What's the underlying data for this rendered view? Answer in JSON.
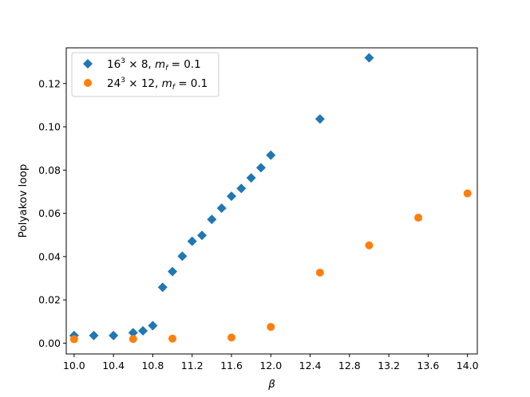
{
  "chart_data": {
    "type": "scatter",
    "xlabel": "β",
    "ylabel": "Polyakov loop",
    "xlim": [
      9.92,
      14.1
    ],
    "ylim": [
      -0.005,
      0.1365
    ],
    "xticks": [
      "10.0",
      "10.4",
      "10.8",
      "11.2",
      "11.6",
      "12.0",
      "12.4",
      "12.8",
      "13.2",
      "13.6",
      "14.0"
    ],
    "yticks": [
      "0.00",
      "0.02",
      "0.04",
      "0.06",
      "0.08",
      "0.10",
      "0.12"
    ],
    "legend_position": "top-left",
    "series": [
      {
        "name": "16³ × 8,  m_f = 0.1",
        "legend_main": "16",
        "legend_sup": "3",
        "legend_mid": " × 8,  ",
        "legend_m": "m",
        "legend_sub": "f",
        "legend_end": " = 0.1",
        "marker": "diamond",
        "color": "#1f77b4",
        "x": [
          10.0,
          10.2,
          10.4,
          10.6,
          10.7,
          10.8,
          10.9,
          11.0,
          11.1,
          11.2,
          11.3,
          11.4,
          11.5,
          11.6,
          11.7,
          11.8,
          11.9,
          12.0,
          12.5,
          13.0
        ],
        "y": [
          0.0035,
          0.0035,
          0.0035,
          0.0048,
          0.0057,
          0.0081,
          0.0258,
          0.0331,
          0.0402,
          0.0471,
          0.0498,
          0.0572,
          0.0624,
          0.0679,
          0.0715,
          0.0764,
          0.0811,
          0.0869,
          0.1036,
          0.1319
        ]
      },
      {
        "name": "24³ × 12,  m_f = 0.1",
        "legend_main": "24",
        "legend_sup": "3",
        "legend_mid": " × 12,  ",
        "legend_m": "m",
        "legend_sub": "f",
        "legend_end": " = 0.1",
        "marker": "circle",
        "color": "#ff7f0e",
        "x": [
          10.0,
          10.6,
          11.0,
          11.6,
          12.0,
          12.5,
          13.0,
          13.5,
          14.0
        ],
        "y": [
          0.0018,
          0.0019,
          0.0021,
          0.0026,
          0.0075,
          0.0326,
          0.0452,
          0.058,
          0.0692
        ]
      }
    ]
  }
}
